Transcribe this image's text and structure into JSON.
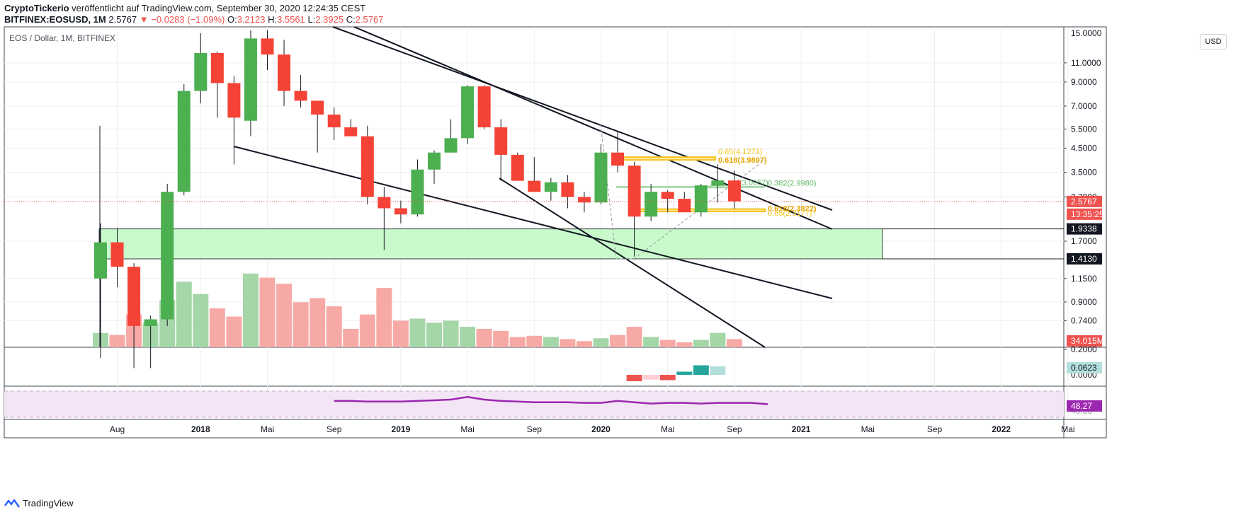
{
  "header": {
    "author": "CryptoTickerio",
    "published_text": "veröffentlicht auf TradingView.com, September 30, 2020 12:24:35 CEST",
    "symbol": "BITFINEX:EOSUSD, 1M",
    "last": "2.5767",
    "change": "−0.0283 (−1.09%)",
    "o_label": "O:",
    "o_val": "3.2123",
    "h_label": "H:",
    "h_val": "3.5561",
    "l_label": "L:",
    "l_val": "2.3925",
    "c_label": "C:",
    "c_val": "2.5767"
  },
  "legend_title": "EOS / Dollar, 1M, BITFINEX",
  "currency_button": "USD",
  "brand": "TradingView",
  "colors": {
    "up": "#4caf50",
    "down": "#f44336",
    "up_vol": "#a5d6a7",
    "down_vol": "#f7a9a5",
    "zone": "#c8facc",
    "fib_gold": "#f5c21b",
    "fib_green": "#81c784",
    "rsi": "#9c27b0",
    "rsi_band": "#f3e5f5",
    "macd_up": "#26a69a",
    "macd_up_light": "#b2dfdb",
    "macd_down": "#ef5350",
    "macd_down_light": "#ffcdd2"
  },
  "chart_data": {
    "type": "candlestick",
    "title": "EOS / Dollar, 1M, BITFINEX",
    "scale": "log",
    "ylim": [
      0.2,
      13.0
    ],
    "y_ticks": [
      {
        "v": 11.0,
        "t": "11.0000"
      },
      {
        "v": 9.0,
        "t": "9.0000"
      },
      {
        "v": 7.0,
        "t": "7.0000"
      },
      {
        "v": 5.5,
        "t": "5.5000"
      },
      {
        "v": 4.5,
        "t": "4.5000"
      },
      {
        "v": 3.5,
        "t": "3.5000"
      },
      {
        "v": 2.7,
        "t": "2.7000"
      },
      {
        "v": 1.7,
        "t": "1.7000"
      },
      {
        "v": 1.15,
        "t": "1.1500"
      },
      {
        "v": 0.9,
        "t": "0.9000"
      },
      {
        "v": 0.74,
        "t": "0.7400"
      },
      {
        "v": 0.2,
        "t": "0.2000"
      }
    ],
    "x_ticks": [
      "Aug",
      "2018",
      "Mai",
      "Sep",
      "2019",
      "Mai",
      "Sep",
      "2020",
      "Mai",
      "Sep",
      "2021",
      "Mai",
      "Sep",
      "2022",
      "Mai"
    ],
    "candles": [
      {
        "m": "2017-07",
        "o": 1.15,
        "h": 2.05,
        "l": 0.5,
        "c": 1.68
      },
      {
        "m": "2017-08",
        "o": 1.68,
        "h": 1.95,
        "l": 1.05,
        "c": 1.3
      },
      {
        "m": "2017-09",
        "o": 1.3,
        "h": 1.35,
        "l": 0.45,
        "c": 0.7
      },
      {
        "m": "2017-10",
        "o": 0.7,
        "h": 0.78,
        "l": 0.45,
        "c": 0.75
      },
      {
        "m": "2017-11",
        "o": 0.75,
        "h": 3.1,
        "l": 0.7,
        "c": 2.85
      },
      {
        "m": "2017-12",
        "o": 2.85,
        "h": 8.8,
        "l": 2.75,
        "c": 8.2
      },
      {
        "m": "2018-01",
        "o": 8.2,
        "h": 15.0,
        "l": 7.2,
        "c": 12.2
      },
      {
        "m": "2018-02",
        "o": 12.2,
        "h": 12.4,
        "l": 6.2,
        "c": 8.9
      },
      {
        "m": "2018-03",
        "o": 8.9,
        "h": 9.6,
        "l": 3.8,
        "c": 6.2
      },
      {
        "m": "2018-04",
        "o": 6.0,
        "h": 15.5,
        "l": 5.1,
        "c": 14.2
      },
      {
        "m": "2018-05",
        "o": 14.2,
        "h": 15.5,
        "l": 10.2,
        "c": 12.0
      },
      {
        "m": "2018-06",
        "o": 12.0,
        "h": 14.0,
        "l": 7.0,
        "c": 8.2
      },
      {
        "m": "2018-07",
        "o": 8.2,
        "h": 9.7,
        "l": 6.9,
        "c": 7.4
      },
      {
        "m": "2018-08",
        "o": 7.4,
        "h": 7.4,
        "l": 4.3,
        "c": 6.4
      },
      {
        "m": "2018-09",
        "o": 6.4,
        "h": 6.9,
        "l": 4.9,
        "c": 5.6
      },
      {
        "m": "2018-10",
        "o": 5.6,
        "h": 6.1,
        "l": 5.1,
        "c": 5.1
      },
      {
        "m": "2018-11",
        "o": 5.1,
        "h": 5.7,
        "l": 2.5,
        "c": 2.7
      },
      {
        "m": "2018-12",
        "o": 2.7,
        "h": 3.0,
        "l": 1.55,
        "c": 2.4
      },
      {
        "m": "2019-01",
        "o": 2.4,
        "h": 2.6,
        "l": 2.05,
        "c": 2.25
      },
      {
        "m": "2019-02",
        "o": 2.25,
        "h": 4.0,
        "l": 2.2,
        "c": 3.6
      },
      {
        "m": "2019-03",
        "o": 3.6,
        "h": 4.4,
        "l": 3.1,
        "c": 4.3
      },
      {
        "m": "2019-04",
        "o": 4.3,
        "h": 6.1,
        "l": 4.3,
        "c": 5.0
      },
      {
        "m": "2019-05",
        "o": 5.0,
        "h": 8.7,
        "l": 4.7,
        "c": 8.6
      },
      {
        "m": "2019-06",
        "o": 8.6,
        "h": 8.7,
        "l": 5.5,
        "c": 5.6
      },
      {
        "m": "2019-07",
        "o": 5.6,
        "h": 6.1,
        "l": 3.2,
        "c": 4.2
      },
      {
        "m": "2019-08",
        "o": 4.2,
        "h": 4.3,
        "l": 3.2,
        "c": 3.2
      },
      {
        "m": "2019-09",
        "o": 3.2,
        "h": 4.1,
        "l": 2.9,
        "c": 2.85
      },
      {
        "m": "2019-10",
        "o": 2.85,
        "h": 3.3,
        "l": 2.6,
        "c": 3.15
      },
      {
        "m": "2019-11",
        "o": 3.15,
        "h": 3.4,
        "l": 2.4,
        "c": 2.7
      },
      {
        "m": "2019-12",
        "o": 2.7,
        "h": 2.85,
        "l": 2.3,
        "c": 2.55
      },
      {
        "m": "2020-01",
        "o": 2.55,
        "h": 4.7,
        "l": 2.5,
        "c": 4.3
      },
      {
        "m": "2020-02",
        "o": 4.3,
        "h": 5.4,
        "l": 3.5,
        "c": 3.75
      },
      {
        "m": "2020-03",
        "o": 3.75,
        "h": 3.9,
        "l": 1.45,
        "c": 2.2
      },
      {
        "m": "2020-04",
        "o": 2.2,
        "h": 3.1,
        "l": 2.1,
        "c": 2.85
      },
      {
        "m": "2020-05",
        "o": 2.85,
        "h": 2.9,
        "l": 2.3,
        "c": 2.65
      },
      {
        "m": "2020-06",
        "o": 2.65,
        "h": 2.85,
        "l": 2.3,
        "c": 2.3
      },
      {
        "m": "2020-07",
        "o": 2.3,
        "h": 3.1,
        "l": 2.2,
        "c": 3.05
      },
      {
        "m": "2020-08",
        "o": 3.05,
        "h": 3.8,
        "l": 2.55,
        "c": 3.21
      },
      {
        "m": "2020-09",
        "o": 3.21,
        "h": 3.56,
        "l": 2.39,
        "c": 2.58
      }
    ],
    "volume": [
      0.35,
      0.3,
      0.8,
      0.6,
      1.15,
      1.6,
      1.3,
      0.95,
      0.75,
      1.8,
      1.7,
      1.55,
      1.1,
      1.2,
      1.0,
      0.45,
      0.8,
      1.45,
      0.65,
      0.7,
      0.6,
      0.65,
      0.5,
      0.45,
      0.4,
      0.25,
      0.28,
      0.25,
      0.2,
      0.15,
      0.22,
      0.3,
      0.5,
      0.25,
      0.18,
      0.12,
      0.18,
      0.35,
      0.2
    ],
    "fib_labels": [
      {
        "price": 4.1,
        "text": "0.65(4.1271)",
        "color": "gold"
      },
      {
        "price": 3.98,
        "text": "0.618(3.9897)",
        "color": "gold"
      },
      {
        "price": 3.0,
        "text": "0.382(2.9980)",
        "color": "green"
      },
      {
        "price": 3.01,
        "text": "(3.0057)",
        "color": "green"
      },
      {
        "price": 2.38,
        "text": "0.618(2.3822)",
        "color": "gold"
      },
      {
        "price": 2.32,
        "text": "0.65(2.3177)",
        "color": "gold"
      }
    ],
    "zone": {
      "top": 1.9338,
      "bottom": 1.413
    },
    "price_badges": [
      {
        "value": "2.5767",
        "kind": "last"
      },
      {
        "value": "13:35:25",
        "kind": "countdown"
      },
      {
        "value": "1.9338",
        "kind": "level"
      },
      {
        "value": "1.4130",
        "kind": "level"
      },
      {
        "value": "34.015M",
        "kind": "volume"
      }
    ],
    "macd_value": "0.0623",
    "macd_ticks": [
      "0.0000"
    ],
    "rsi_value": "48.27",
    "rsi_ticks": [
      "40.00"
    ],
    "top_tick": "15.0000",
    "rsi_series": [
      55,
      55,
      54,
      54,
      54,
      55,
      56,
      57,
      61,
      57,
      55,
      54,
      53,
      53,
      53,
      52,
      52,
      55,
      53,
      51,
      52,
      52,
      51,
      52,
      52,
      52,
      50
    ]
  }
}
